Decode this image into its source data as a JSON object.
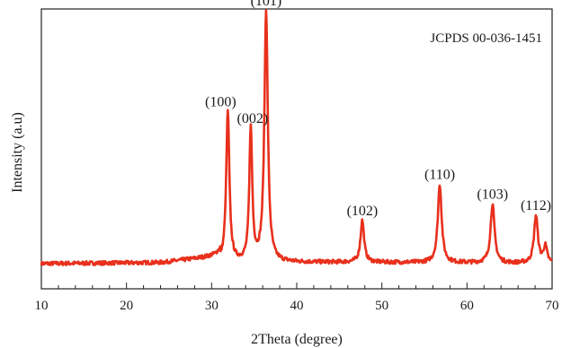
{
  "chart_data": {
    "type": "line",
    "title": "",
    "xlabel": "2Theta (degree)",
    "ylabel": "Intensity (a.u)",
    "xlim": [
      10,
      70
    ],
    "x_ticks": [
      10,
      20,
      30,
      40,
      50,
      60,
      70
    ],
    "ylim": [
      0,
      100
    ],
    "y_tick_labels_shown": false,
    "grid": false,
    "legend": "none",
    "annotation": "JCPDS 00-036-1451",
    "series": [
      {
        "color": "#e8301c",
        "baseline": 9,
        "noise": 0.7,
        "peaks": [
          {
            "x": 31.9,
            "height": 54,
            "width": 0.22,
            "label": "(100)"
          },
          {
            "x": 34.6,
            "height": 48,
            "width": 0.2,
            "label": "(002)"
          },
          {
            "x": 36.4,
            "height": 90,
            "width": 0.24,
            "label": "(101)"
          },
          {
            "x": 47.7,
            "height": 15,
            "width": 0.25,
            "label": "(102)"
          },
          {
            "x": 56.8,
            "height": 28,
            "width": 0.27,
            "label": "(110)"
          },
          {
            "x": 63.0,
            "height": 21,
            "width": 0.28,
            "label": "(103)"
          },
          {
            "x": 68.1,
            "height": 17,
            "width": 0.27,
            "label": "(112)"
          },
          {
            "x": 69.2,
            "height": 6,
            "width": 0.25,
            "label": ""
          }
        ]
      }
    ]
  }
}
